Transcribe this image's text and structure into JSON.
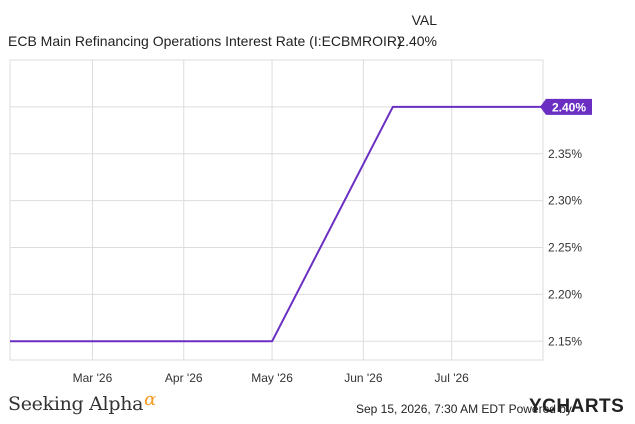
{
  "header": {
    "series_title": "ECB Main Refinancing Operations Interest Rate (I:ECBMROIR)",
    "column_label": "VAL",
    "current_value": "2.40%"
  },
  "footer": {
    "brand_name": "Seeking Alpha",
    "brand_symbol": "α",
    "timestamp": "Sep 15, 2026, 7:30 AM EDT",
    "powered_by": "Powered by",
    "provider_mark": "YCHARTS"
  },
  "colors": {
    "line": "#6a2fc2",
    "grid": "#dddddd",
    "badge": "#6a2fc2",
    "brand_accent": "#f79a21"
  },
  "chart_data": {
    "type": "line",
    "title": "ECB Main Refinancing Operations Interest Rate (I:ECBMROIR)",
    "xlabel": "",
    "ylabel": "",
    "x_ticks": [
      "Mar '26",
      "Apr '26",
      "May '26",
      "Jun '26",
      "Jul '26"
    ],
    "y_ticks": [
      "2.15%",
      "2.20%",
      "2.25%",
      "2.30%",
      "2.35%",
      "2.40%"
    ],
    "ylim": [
      2.13,
      2.45
    ],
    "xlim": [
      "2026-02-01",
      "2026-08-01"
    ],
    "grid": true,
    "last_value_label": "2.40%",
    "series": [
      {
        "name": "ECB Main Refinancing Operations Interest Rate",
        "points": [
          {
            "x": "2026-02-01",
            "y": 2.15
          },
          {
            "x": "2026-05-01",
            "y": 2.15
          },
          {
            "x": "2026-06-11",
            "y": 2.4
          },
          {
            "x": "2026-08-01",
            "y": 2.4
          }
        ]
      }
    ]
  }
}
